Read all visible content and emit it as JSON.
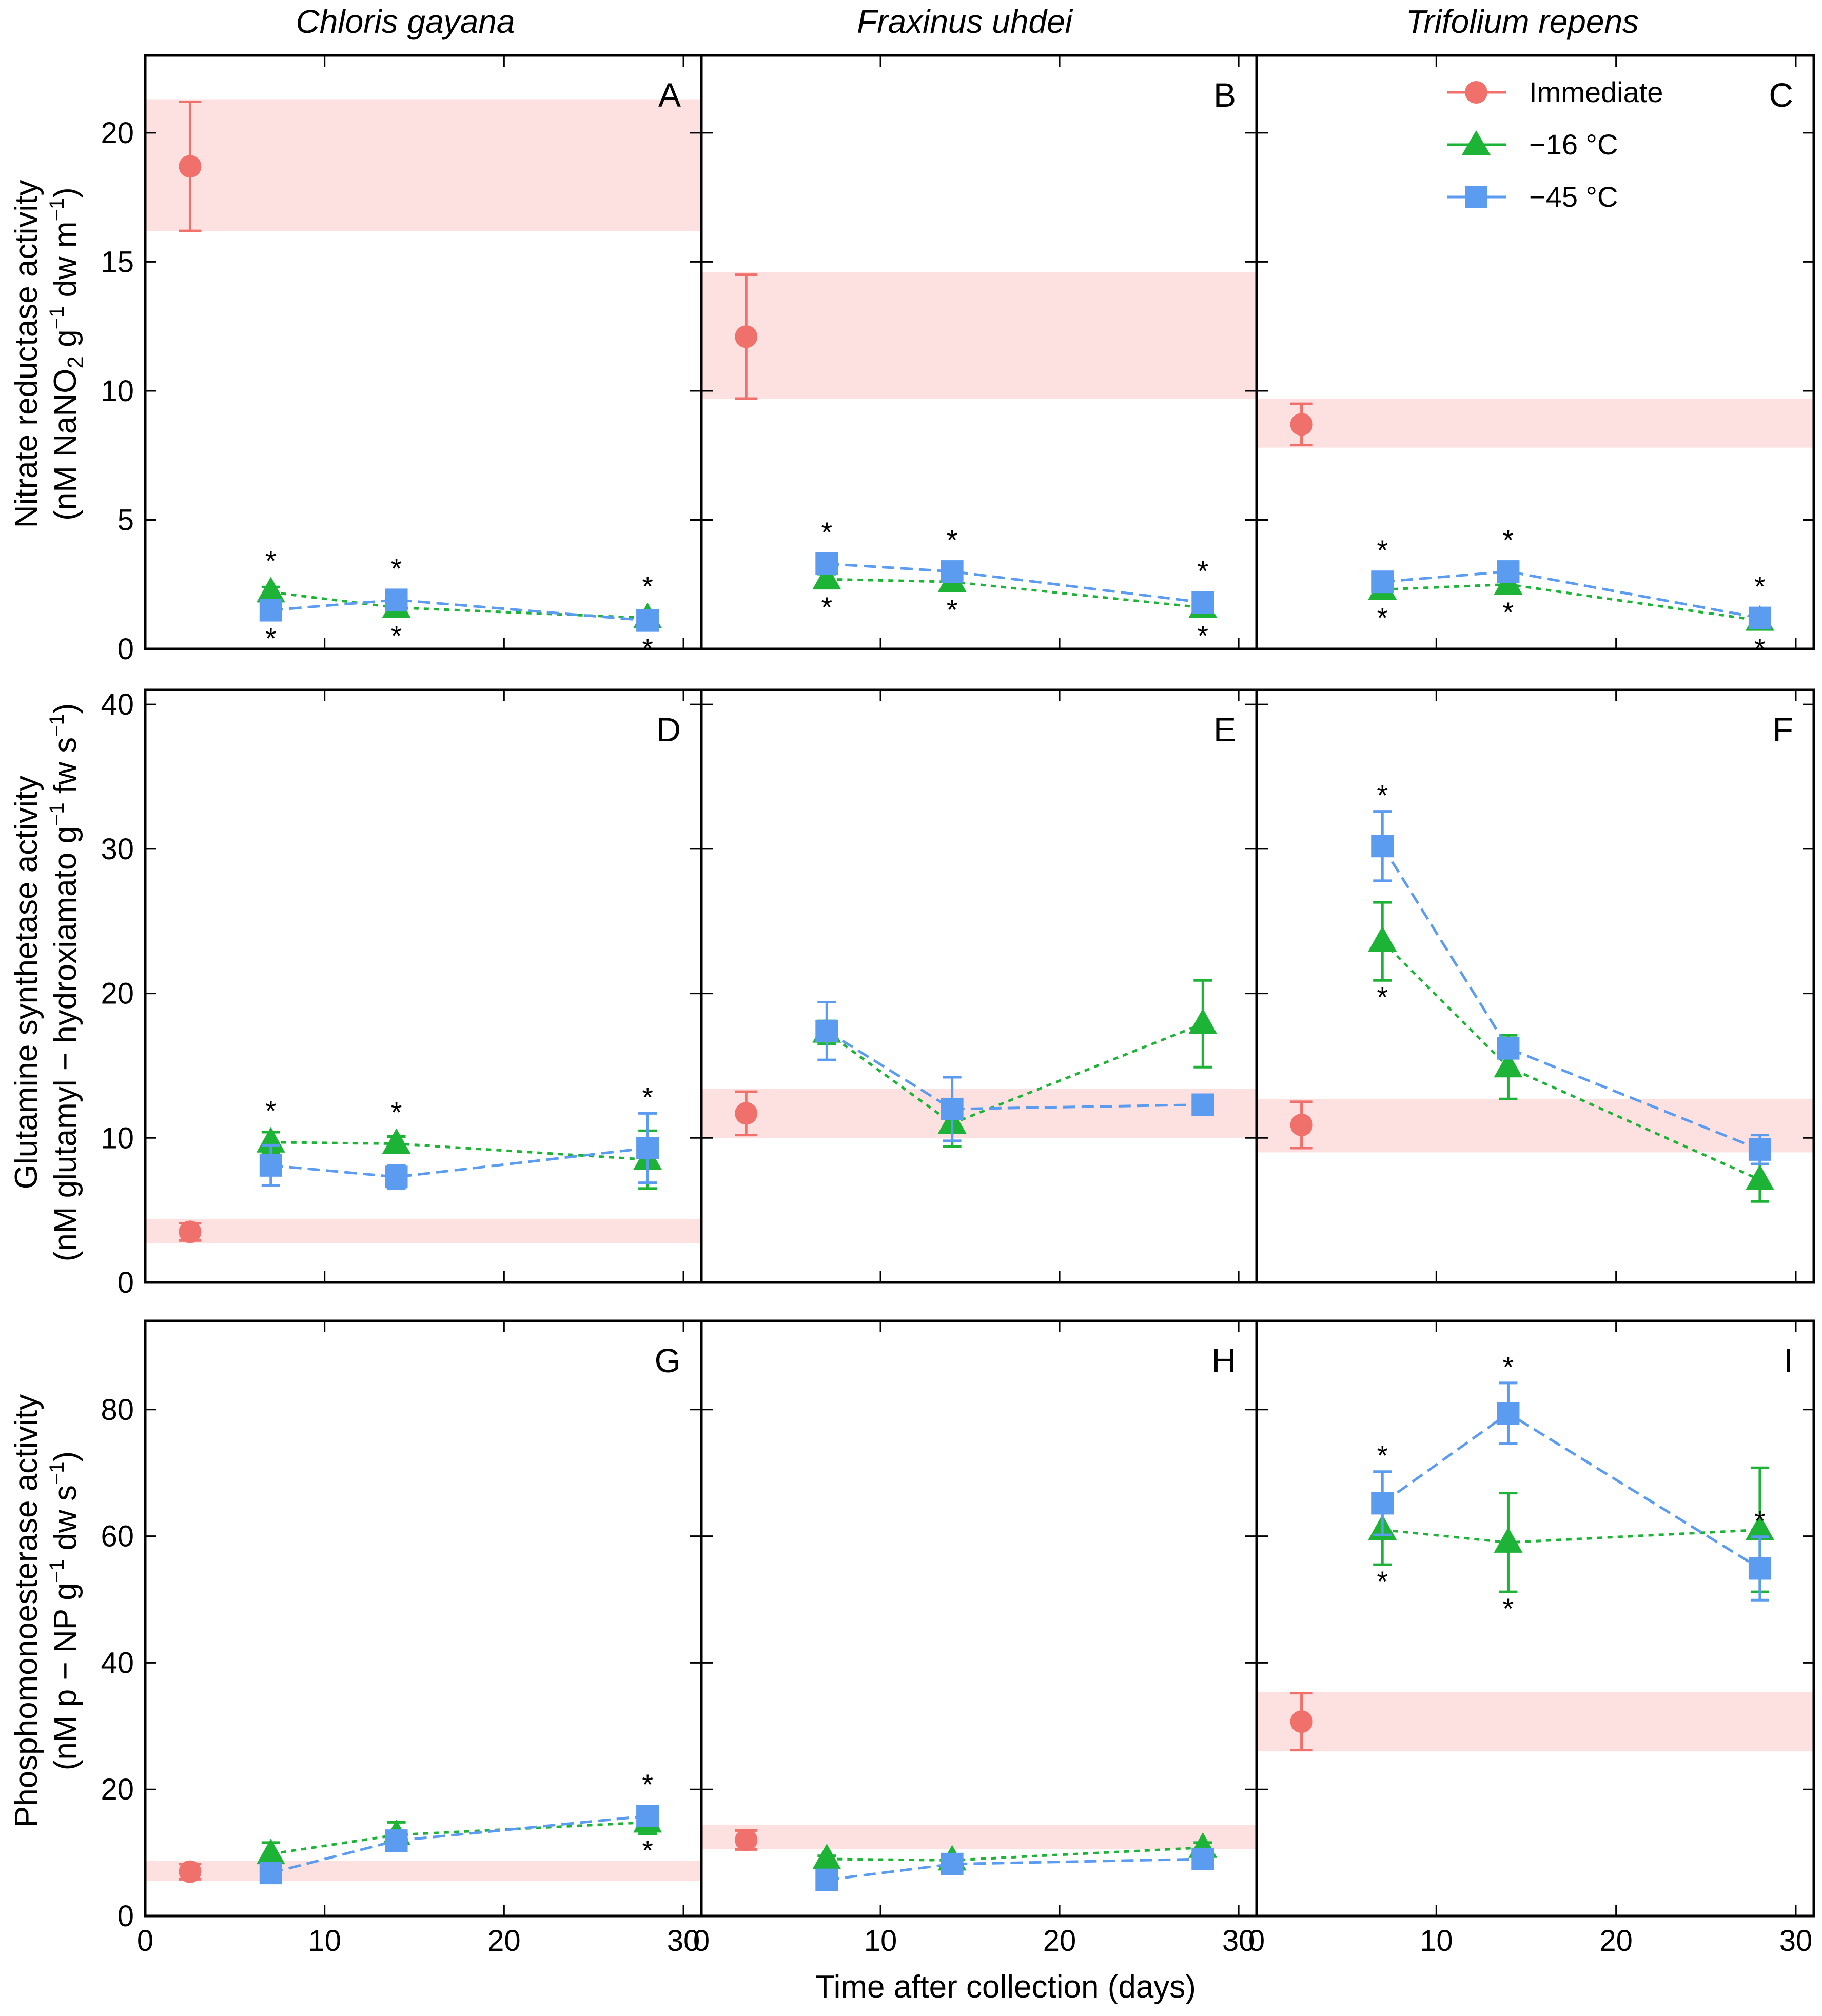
{
  "figure": {
    "column_titles": [
      "Chloris gayana",
      "Fraxinus uhdei",
      "Trifolium repens"
    ],
    "row_ylabels": [
      [
        "Nitrate reductase activity",
        "(nM NaNO",
        "2",
        " g",
        "−1",
        " dw m",
        "−1",
        ")"
      ],
      [
        "Glutamine synthetase activity",
        "(nM glutamyl − hydroxiamato g",
        "−1",
        " fw s",
        "−1",
        ")"
      ],
      [
        "Phosphomonoesterase activity",
        "(nM p − NP g",
        "−1",
        " dw s",
        "−1",
        ")"
      ]
    ],
    "xlabel": "Time after collection (days)",
    "xlim": [
      0,
      31
    ],
    "xticks": [
      0,
      10,
      20,
      30
    ],
    "legend": {
      "position": "top-right of panel C",
      "entries": [
        {
          "label": "Immediate",
          "marker": "circle",
          "color": "#f0706b"
        },
        {
          "label": "−16 °C",
          "marker": "triangle",
          "color": "#1db336"
        },
        {
          "label": "−45 °C",
          "marker": "square",
          "color": "#5b9bf0"
        }
      ]
    },
    "colors": {
      "immediate": "#f0706b",
      "band": "#fde1e1",
      "m16": "#1db336",
      "m45": "#5b9bf0"
    }
  },
  "chart_data": [
    {
      "type": "scatter",
      "panel": "A",
      "species": "Chloris gayana",
      "ylim": [
        0,
        23
      ],
      "yticks": [
        0,
        5,
        10,
        15,
        20
      ],
      "immediate": {
        "x": 2.5,
        "y": 18.7,
        "err": 2.5
      },
      "band": [
        16.2,
        21.3
      ],
      "series": [
        {
          "name": "−16 °C",
          "x": [
            7,
            14,
            28
          ],
          "y": [
            2.2,
            1.6,
            1.2
          ],
          "err": [
            0.2,
            0.2,
            0.2
          ],
          "stars": [
            "above",
            "below",
            "above"
          ]
        },
        {
          "name": "−45 °C",
          "x": [
            7,
            14,
            28
          ],
          "y": [
            1.5,
            1.9,
            1.1
          ],
          "err": [
            0.2,
            0.2,
            0.2
          ],
          "stars": [
            "below",
            "above",
            "below"
          ]
        }
      ]
    },
    {
      "type": "scatter",
      "panel": "B",
      "species": "Fraxinus uhdei",
      "ylim": [
        0,
        23
      ],
      "yticks": [
        0,
        5,
        10,
        15,
        20
      ],
      "immediate": {
        "x": 2.5,
        "y": 12.1,
        "err": 2.4
      },
      "band": [
        9.7,
        14.6
      ],
      "series": [
        {
          "name": "−16 °C",
          "x": [
            7,
            14,
            28
          ],
          "y": [
            2.7,
            2.6,
            1.6
          ],
          "err": [
            0.2,
            0.2,
            0.2
          ],
          "stars": [
            "below",
            "below",
            "below"
          ]
        },
        {
          "name": "−45 °C",
          "x": [
            7,
            14,
            28
          ],
          "y": [
            3.3,
            3.0,
            1.8
          ],
          "err": [
            0.2,
            0.2,
            0.2
          ],
          "stars": [
            "above",
            "above",
            "above"
          ]
        }
      ]
    },
    {
      "type": "scatter",
      "panel": "C",
      "species": "Trifolium repens",
      "ylim": [
        0,
        23
      ],
      "yticks": [
        0,
        5,
        10,
        15,
        20
      ],
      "immediate": {
        "x": 2.5,
        "y": 8.7,
        "err": 0.8
      },
      "band": [
        7.8,
        9.7
      ],
      "series": [
        {
          "name": "−16 °C",
          "x": [
            7,
            14,
            28
          ],
          "y": [
            2.3,
            2.5,
            1.1
          ],
          "err": [
            0.2,
            0.2,
            0.2
          ],
          "stars": [
            "below",
            "below",
            "below"
          ]
        },
        {
          "name": "−45 °C",
          "x": [
            7,
            14,
            28
          ],
          "y": [
            2.6,
            3.0,
            1.2
          ],
          "err": [
            0.2,
            0.2,
            0.2
          ],
          "stars": [
            "above",
            "above",
            "above"
          ]
        }
      ]
    },
    {
      "type": "scatter",
      "panel": "D",
      "species": "Chloris gayana",
      "ylim": [
        0,
        41
      ],
      "yticks": [
        0,
        10,
        20,
        30,
        40
      ],
      "immediate": {
        "x": 2.5,
        "y": 3.5,
        "err": 0.6
      },
      "band": [
        2.7,
        4.4
      ],
      "series": [
        {
          "name": "−16 °C",
          "x": [
            7,
            14,
            28
          ],
          "y": [
            9.7,
            9.6,
            8.5
          ],
          "err": [
            0.7,
            0.5,
            2.0
          ],
          "stars": [
            "above",
            "above",
            "none"
          ]
        },
        {
          "name": "−45 °C",
          "x": [
            7,
            14,
            28
          ],
          "y": [
            8.1,
            7.3,
            9.3
          ],
          "err": [
            1.4,
            0.8,
            2.4
          ],
          "stars": [
            "none",
            "none",
            "above"
          ]
        }
      ]
    },
    {
      "type": "scatter",
      "panel": "E",
      "species": "Fraxinus uhdei",
      "ylim": [
        0,
        41
      ],
      "yticks": [
        0,
        10,
        20,
        30,
        40
      ],
      "immediate": {
        "x": 2.5,
        "y": 11.7,
        "err": 1.5
      },
      "band": [
        10.0,
        13.4
      ],
      "series": [
        {
          "name": "−16 °C",
          "x": [
            7,
            14,
            28
          ],
          "y": [
            17.3,
            11.0,
            17.9
          ],
          "err": [
            0.8,
            1.6,
            3.0
          ],
          "stars": [
            "none",
            "none",
            "none"
          ]
        },
        {
          "name": "−45 °C",
          "x": [
            7,
            14,
            28
          ],
          "y": [
            17.4,
            12.0,
            12.3
          ],
          "err": [
            2.0,
            2.2,
            0.0
          ],
          "stars": [
            "none",
            "none",
            "none"
          ]
        }
      ]
    },
    {
      "type": "scatter",
      "panel": "F",
      "species": "Trifolium repens",
      "ylim": [
        0,
        41
      ],
      "yticks": [
        0,
        10,
        20,
        30,
        40
      ],
      "immediate": {
        "x": 2.5,
        "y": 10.9,
        "err": 1.6
      },
      "band": [
        9.0,
        12.7
      ],
      "series": [
        {
          "name": "−16 °C",
          "x": [
            7,
            14,
            28
          ],
          "y": [
            23.6,
            14.9,
            7.1
          ],
          "err": [
            2.7,
            2.2,
            1.5
          ],
          "stars": [
            "below",
            "none",
            "none"
          ]
        },
        {
          "name": "−45 °C",
          "x": [
            7,
            14,
            28
          ],
          "y": [
            30.2,
            16.2,
            9.2
          ],
          "err": [
            2.4,
            0.5,
            1.0
          ],
          "stars": [
            "above",
            "none",
            "none"
          ]
        }
      ]
    },
    {
      "type": "scatter",
      "panel": "G",
      "species": "Chloris gayana",
      "ylim": [
        0,
        94
      ],
      "yticks": [
        0,
        20,
        40,
        60,
        80
      ],
      "immediate": {
        "x": 2.5,
        "y": 7.0,
        "err": 1.2
      },
      "band": [
        5.5,
        8.7
      ],
      "series": [
        {
          "name": "−16 °C",
          "x": [
            7,
            14,
            28
          ],
          "y": [
            9.8,
            12.8,
            14.8
          ],
          "err": [
            1.8,
            2.0,
            1.8
          ],
          "stars": [
            "none",
            "none",
            "below"
          ]
        },
        {
          "name": "−45 °C",
          "x": [
            7,
            14,
            28
          ],
          "y": [
            6.8,
            11.9,
            15.8
          ],
          "err": [
            0.8,
            1.4,
            1.2
          ],
          "stars": [
            "none",
            "none",
            "above"
          ]
        }
      ]
    },
    {
      "type": "scatter",
      "panel": "H",
      "species": "Fraxinus uhdei",
      "ylim": [
        0,
        94
      ],
      "yticks": [
        0,
        20,
        40,
        60,
        80
      ],
      "immediate": {
        "x": 2.5,
        "y": 12.0,
        "err": 1.5
      },
      "band": [
        10.6,
        14.4
      ],
      "series": [
        {
          "name": "−16 °C",
          "x": [
            7,
            14,
            28
          ],
          "y": [
            9.0,
            8.8,
            10.8
          ],
          "err": [
            0.5,
            0.7,
            0.8
          ],
          "stars": [
            "none",
            "none",
            "none"
          ]
        },
        {
          "name": "−45 °C",
          "x": [
            7,
            14,
            28
          ],
          "y": [
            5.7,
            8.2,
            9.0
          ],
          "err": [
            0.4,
            0.4,
            0.4
          ],
          "stars": [
            "none",
            "none",
            "none"
          ]
        }
      ]
    },
    {
      "type": "scatter",
      "panel": "I",
      "species": "Trifolium repens",
      "ylim": [
        0,
        94
      ],
      "yticks": [
        0,
        20,
        40,
        60,
        80
      ],
      "immediate": {
        "x": 2.5,
        "y": 30.7,
        "err": 4.5
      },
      "band": [
        26.0,
        35.4
      ],
      "series": [
        {
          "name": "−16 °C",
          "x": [
            7,
            14,
            28
          ],
          "y": [
            61.0,
            59.0,
            61.0
          ],
          "err": [
            5.5,
            7.8,
            9.8
          ],
          "stars": [
            "below",
            "below",
            "none"
          ]
        },
        {
          "name": "−45 °C",
          "x": [
            7,
            14,
            28
          ],
          "y": [
            65.2,
            79.4,
            54.9
          ],
          "err": [
            5.0,
            4.8,
            5.0
          ],
          "stars": [
            "above",
            "above",
            "above"
          ]
        }
      ]
    }
  ]
}
